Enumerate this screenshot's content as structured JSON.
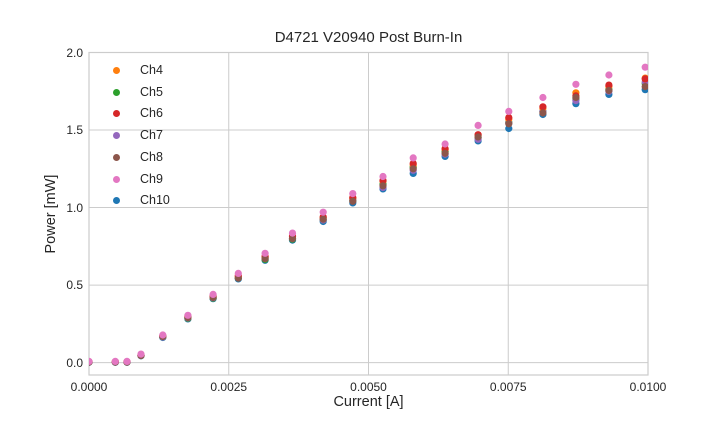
{
  "chart_data": {
    "type": "scatter",
    "title": "D4721 V20940 Post Burn-In",
    "xlabel": "Current [A]",
    "ylabel": "Power [mW]",
    "xlim": [
      0.0,
      0.01
    ],
    "ylim": [
      -0.08,
      2.0
    ],
    "grid": true,
    "legend_position": "upper-left-inside",
    "x_ticks": [
      0.0,
      0.0025,
      0.005,
      0.0075,
      0.01
    ],
    "x_tick_labels": [
      "0.0000",
      "0.0025",
      "0.0050",
      "0.0075",
      "0.0100"
    ],
    "y_ticks": [
      0.0,
      0.5,
      1.0,
      1.5,
      2.0
    ],
    "y_tick_labels": [
      "0.0",
      "0.5",
      "1.0",
      "1.5",
      "2.0"
    ],
    "x": [
      0.0,
      0.00047,
      0.00068,
      0.00093,
      0.00132,
      0.00177,
      0.00222,
      0.00267,
      0.00315,
      0.00364,
      0.00419,
      0.00472,
      0.00526,
      0.0058,
      0.00637,
      0.00696,
      0.00751,
      0.00812,
      0.00871,
      0.0093,
      0.00995
    ],
    "series": [
      {
        "name": "Ch4",
        "color": "#ff7f0e",
        "values": [
          0.005,
          0.005,
          0.005,
          0.048,
          0.17,
          0.295,
          0.425,
          0.555,
          0.68,
          0.81,
          0.935,
          1.06,
          1.17,
          1.275,
          1.375,
          1.465,
          1.57,
          1.64,
          1.74,
          1.78,
          1.835
        ]
      },
      {
        "name": "Ch5",
        "color": "#2ca02c",
        "values": [
          0.003,
          0.003,
          0.003,
          0.045,
          0.165,
          0.285,
          0.415,
          0.545,
          0.665,
          0.795,
          0.92,
          1.045,
          1.15,
          1.26,
          1.36,
          1.45,
          1.55,
          1.62,
          1.7,
          1.76,
          1.8
        ]
      },
      {
        "name": "Ch6",
        "color": "#d62728",
        "values": [
          0.005,
          0.005,
          0.005,
          0.048,
          0.172,
          0.3,
          0.43,
          0.56,
          0.685,
          0.815,
          0.94,
          1.065,
          1.175,
          1.285,
          1.38,
          1.47,
          1.58,
          1.65,
          1.72,
          1.79,
          1.83
        ]
      },
      {
        "name": "Ch7",
        "color": "#9467bd",
        "values": [
          0.003,
          0.003,
          0.003,
          0.045,
          0.165,
          0.288,
          0.418,
          0.55,
          0.675,
          0.8,
          0.92,
          1.05,
          1.13,
          1.24,
          1.345,
          1.44,
          1.545,
          1.62,
          1.69,
          1.75,
          1.81
        ]
      },
      {
        "name": "Ch8",
        "color": "#8c564b",
        "values": [
          0.003,
          0.003,
          0.003,
          0.046,
          0.168,
          0.29,
          0.42,
          0.545,
          0.67,
          0.8,
          0.925,
          1.04,
          1.14,
          1.25,
          1.35,
          1.455,
          1.54,
          1.61,
          1.71,
          1.755,
          1.78
        ]
      },
      {
        "name": "Ch9",
        "color": "#e377c2",
        "values": [
          0.008,
          0.008,
          0.008,
          0.055,
          0.178,
          0.305,
          0.44,
          0.575,
          0.705,
          0.835,
          0.97,
          1.09,
          1.2,
          1.32,
          1.41,
          1.53,
          1.62,
          1.71,
          1.795,
          1.855,
          1.905
        ]
      },
      {
        "name": "Ch10",
        "color": "#1f77b4",
        "values": [
          0.002,
          0.002,
          0.002,
          0.044,
          0.162,
          0.282,
          0.412,
          0.54,
          0.66,
          0.79,
          0.91,
          1.03,
          1.12,
          1.22,
          1.33,
          1.43,
          1.51,
          1.6,
          1.67,
          1.73,
          1.76
        ]
      }
    ],
    "colors": {
      "grid": "#cccccc",
      "spine": "#cccccc",
      "text": "#262626",
      "background": "#ffffff"
    }
  }
}
